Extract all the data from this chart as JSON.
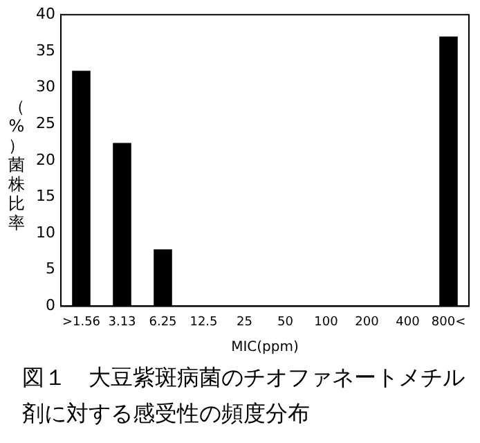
{
  "chart_data": {
    "type": "bar",
    "title": "図１　大豆紫斑病菌のチオファネートメチル剤に対する感受性の頻度分布",
    "xlabel": "MIC(ppm)",
    "ylabel": "（%）菌株比率",
    "categories": [
      ">1.56",
      "3.13",
      "6.25",
      "12.5",
      "25",
      "50",
      "100",
      "200",
      "400",
      "800<"
    ],
    "values": [
      32.3,
      22.4,
      7.8,
      0,
      0,
      0,
      0,
      0,
      0,
      37.0
    ],
    "color": "#000000",
    "ylim": [
      0,
      40
    ],
    "yticks": [
      0,
      5,
      10,
      15,
      20,
      25,
      30,
      35,
      40
    ],
    "grid": false,
    "legend": false
  }
}
